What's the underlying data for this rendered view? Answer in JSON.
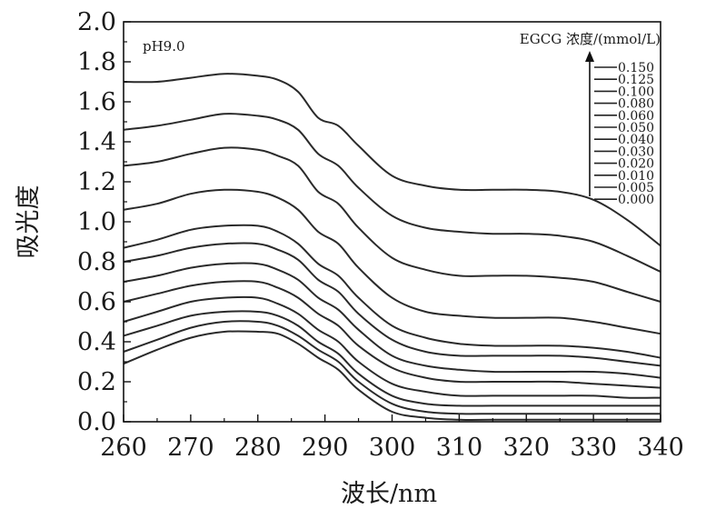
{
  "chart_data": {
    "type": "line",
    "annotation": "pH9.0",
    "xlabel": "波长/nm",
    "ylabel": "吸光度",
    "xlim": [
      260,
      340
    ],
    "ylim": [
      0.0,
      2.0
    ],
    "x_ticks": [
      "260",
      "270",
      "280",
      "290",
      "300",
      "310",
      "320",
      "330",
      "340"
    ],
    "y_ticks": [
      "0.0",
      "0.2",
      "0.4",
      "0.6",
      "0.8",
      "1.0",
      "1.2",
      "1.4",
      "1.6",
      "1.8",
      "2.0"
    ],
    "legend_title": "EGCG 浓度/(mmol/L)",
    "legend_labels": [
      "0.150",
      "0.125",
      "0.100",
      "0.080",
      "0.060",
      "0.050",
      "0.040",
      "0.030",
      "0.020",
      "0.010",
      "0.005",
      "0.000"
    ],
    "x": [
      260,
      265,
      270,
      275,
      280,
      283,
      286,
      289,
      292,
      295,
      300,
      305,
      310,
      315,
      320,
      325,
      330,
      335,
      340
    ],
    "series": [
      {
        "name": "0.150",
        "values": [
          1.7,
          1.7,
          1.72,
          1.74,
          1.73,
          1.71,
          1.65,
          1.52,
          1.48,
          1.38,
          1.23,
          1.18,
          1.16,
          1.16,
          1.16,
          1.15,
          1.11,
          1.01,
          0.88
        ]
      },
      {
        "name": "0.125",
        "values": [
          1.46,
          1.48,
          1.51,
          1.54,
          1.53,
          1.51,
          1.46,
          1.34,
          1.28,
          1.17,
          1.03,
          0.97,
          0.95,
          0.94,
          0.94,
          0.93,
          0.9,
          0.83,
          0.75
        ]
      },
      {
        "name": "0.100",
        "values": [
          1.28,
          1.3,
          1.34,
          1.37,
          1.36,
          1.33,
          1.28,
          1.15,
          1.09,
          0.97,
          0.82,
          0.76,
          0.73,
          0.73,
          0.73,
          0.72,
          0.7,
          0.65,
          0.6
        ]
      },
      {
        "name": "0.080",
        "values": [
          1.06,
          1.09,
          1.14,
          1.16,
          1.15,
          1.12,
          1.06,
          0.95,
          0.89,
          0.77,
          0.62,
          0.55,
          0.53,
          0.52,
          0.52,
          0.52,
          0.5,
          0.47,
          0.44
        ]
      },
      {
        "name": "0.060",
        "values": [
          0.87,
          0.91,
          0.96,
          0.98,
          0.98,
          0.95,
          0.89,
          0.79,
          0.73,
          0.62,
          0.48,
          0.42,
          0.39,
          0.38,
          0.38,
          0.38,
          0.37,
          0.35,
          0.32
        ]
      },
      {
        "name": "0.050",
        "values": [
          0.8,
          0.83,
          0.87,
          0.89,
          0.89,
          0.86,
          0.81,
          0.71,
          0.65,
          0.54,
          0.41,
          0.35,
          0.33,
          0.33,
          0.33,
          0.33,
          0.32,
          0.3,
          0.28
        ]
      },
      {
        "name": "0.040",
        "values": [
          0.7,
          0.73,
          0.77,
          0.79,
          0.79,
          0.76,
          0.71,
          0.62,
          0.56,
          0.46,
          0.33,
          0.28,
          0.26,
          0.25,
          0.25,
          0.25,
          0.25,
          0.24,
          0.22
        ]
      },
      {
        "name": "0.030",
        "values": [
          0.6,
          0.64,
          0.68,
          0.7,
          0.7,
          0.67,
          0.62,
          0.54,
          0.48,
          0.38,
          0.27,
          0.22,
          0.2,
          0.2,
          0.2,
          0.2,
          0.19,
          0.18,
          0.17
        ]
      },
      {
        "name": "0.020",
        "values": [
          0.5,
          0.55,
          0.6,
          0.62,
          0.62,
          0.59,
          0.54,
          0.46,
          0.4,
          0.3,
          0.19,
          0.15,
          0.13,
          0.13,
          0.13,
          0.13,
          0.13,
          0.12,
          0.12
        ]
      },
      {
        "name": "0.010",
        "values": [
          0.43,
          0.48,
          0.53,
          0.55,
          0.55,
          0.53,
          0.48,
          0.4,
          0.34,
          0.24,
          0.13,
          0.09,
          0.08,
          0.08,
          0.08,
          0.08,
          0.08,
          0.08,
          0.08
        ]
      },
      {
        "name": "0.005",
        "values": [
          0.35,
          0.41,
          0.47,
          0.5,
          0.5,
          0.48,
          0.43,
          0.36,
          0.3,
          0.2,
          0.09,
          0.05,
          0.04,
          0.04,
          0.04,
          0.04,
          0.04,
          0.04,
          0.04
        ]
      },
      {
        "name": "0.000",
        "values": [
          0.29,
          0.36,
          0.42,
          0.45,
          0.45,
          0.44,
          0.39,
          0.32,
          0.26,
          0.16,
          0.05,
          0.02,
          0.01,
          0.01,
          0.01,
          0.01,
          0.01,
          0.01,
          0.01
        ]
      }
    ],
    "grid": false,
    "legend_position": "top-right"
  }
}
